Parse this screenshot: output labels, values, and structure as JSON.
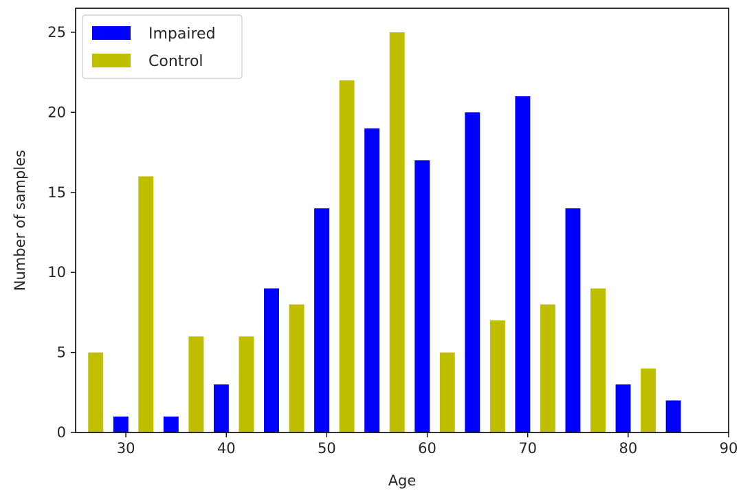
{
  "chart_data": {
    "type": "bar",
    "xlabel": "Age",
    "ylabel": "Number of samples",
    "xlim": [
      25,
      90
    ],
    "ylim": [
      0,
      26.5
    ],
    "xticks": [
      30,
      40,
      50,
      60,
      70,
      80,
      90
    ],
    "yticks": [
      0,
      5,
      10,
      15,
      20,
      25
    ],
    "grid": false,
    "legend_position": "top-left",
    "series": [
      {
        "name": "Impaired",
        "color": "#0000ff",
        "x": [
          29.5,
          34.5,
          39.5,
          44.5,
          49.5,
          54.5,
          59.5,
          64.5,
          69.5,
          74.5,
          79.5,
          84.5
        ],
        "values": [
          1,
          1,
          3,
          9,
          14,
          19,
          17,
          20,
          21,
          14,
          3,
          2
        ]
      },
      {
        "name": "Control",
        "color": "#bfbf00",
        "x": [
          27.0,
          32.0,
          37.0,
          42.0,
          47.0,
          52.0,
          57.0,
          62.0,
          67.0,
          72.0,
          77.0,
          82.0
        ],
        "values": [
          5,
          16,
          6,
          6,
          8,
          22,
          25,
          5,
          7,
          8,
          9,
          4
        ]
      }
    ],
    "bar_width": 1.5
  }
}
